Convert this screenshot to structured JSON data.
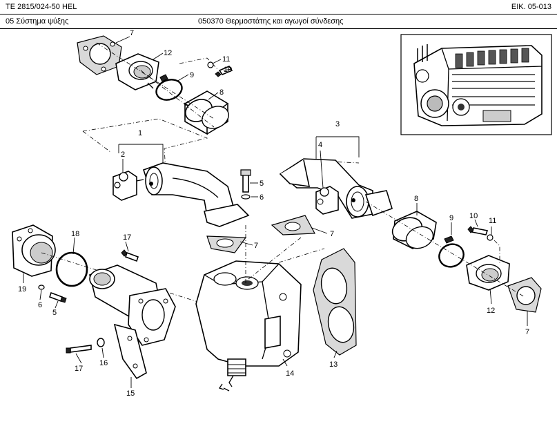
{
  "header": {
    "model": "TE 2815/024-50 HEL",
    "figure_ref": "ΕΙΚ. 05-013",
    "group": "05  Σύστημα ψύξης",
    "title": "050370  Θερμοστάτης και αγωγοί σύνδεσης"
  },
  "callouts": {
    "c1": "1",
    "c2": "2",
    "c3": "3",
    "c4": "4",
    "c5a": "5",
    "c5b": "5",
    "c5c": "5",
    "c6a": "6",
    "c6b": "6",
    "c7a": "7",
    "c7b": "7",
    "c7c": "7",
    "c7d": "7",
    "c8a": "8",
    "c8b": "8",
    "c9a": "9",
    "c9b": "9",
    "c10a": "10",
    "c10b": "10",
    "c11a": "11",
    "c11b": "11",
    "c12a": "12",
    "c12b": "12",
    "c13": "13",
    "c14": "14",
    "c15": "15",
    "c16": "16",
    "c17a": "17",
    "c17b": "17",
    "c18": "18",
    "c19": "19"
  }
}
